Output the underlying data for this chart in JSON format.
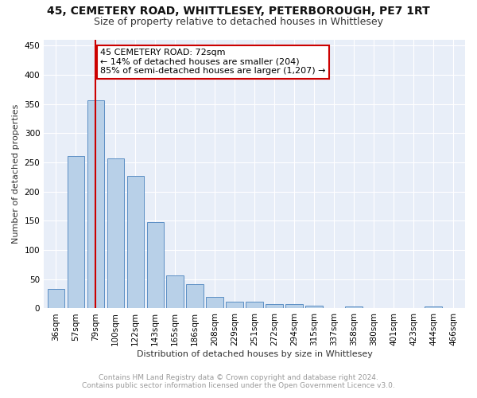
{
  "title": "45, CEMETERY ROAD, WHITTLESEY, PETERBOROUGH, PE7 1RT",
  "subtitle": "Size of property relative to detached houses in Whittlesey",
  "xlabel": "Distribution of detached houses by size in Whittlesey",
  "ylabel": "Number of detached properties",
  "bar_labels": [
    "36sqm",
    "57sqm",
    "79sqm",
    "100sqm",
    "122sqm",
    "143sqm",
    "165sqm",
    "186sqm",
    "208sqm",
    "229sqm",
    "251sqm",
    "272sqm",
    "294sqm",
    "315sqm",
    "337sqm",
    "358sqm",
    "380sqm",
    "401sqm",
    "423sqm",
    "444sqm",
    "466sqm"
  ],
  "bar_values": [
    33,
    261,
    356,
    257,
    227,
    148,
    56,
    42,
    20,
    11,
    11,
    8,
    8,
    5,
    0,
    4,
    0,
    0,
    0,
    4,
    0
  ],
  "bar_color": "#b8d0e8",
  "bar_edge_color": "#5b8ec4",
  "subject_line_color": "#cc0000",
  "annotation_text": "45 CEMETERY ROAD: 72sqm\n← 14% of detached houses are smaller (204)\n85% of semi-detached houses are larger (1,207) →",
  "annotation_box_edge_color": "#cc0000",
  "annotation_bg": "#ffffff",
  "ylim": [
    0,
    460
  ],
  "yticks": [
    0,
    50,
    100,
    150,
    200,
    250,
    300,
    350,
    400,
    450
  ],
  "footer_line1": "Contains HM Land Registry data © Crown copyright and database right 2024.",
  "footer_line2": "Contains public sector information licensed under the Open Government Licence v3.0.",
  "fig_bg_color": "#ffffff",
  "plot_bg_color": "#e8eef8",
  "grid_color": "#ffffff",
  "title_fontsize": 10,
  "subtitle_fontsize": 9,
  "axis_label_fontsize": 8,
  "tick_fontsize": 7.5,
  "annotation_fontsize": 8,
  "footer_fontsize": 6.5
}
